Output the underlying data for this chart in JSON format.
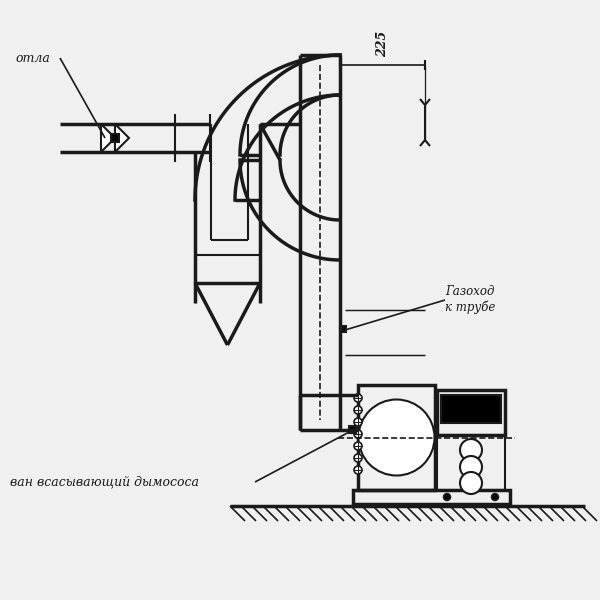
{
  "bg_color": "#f0f0f0",
  "line_color": "#1a1a1a",
  "lw": 1.5,
  "tlw": 2.5,
  "label_kotla": "отла",
  "label_gasohod": "Газоход\nк трубе",
  "label_dym": "ван всасывающий дымососа",
  "label_225": "225"
}
